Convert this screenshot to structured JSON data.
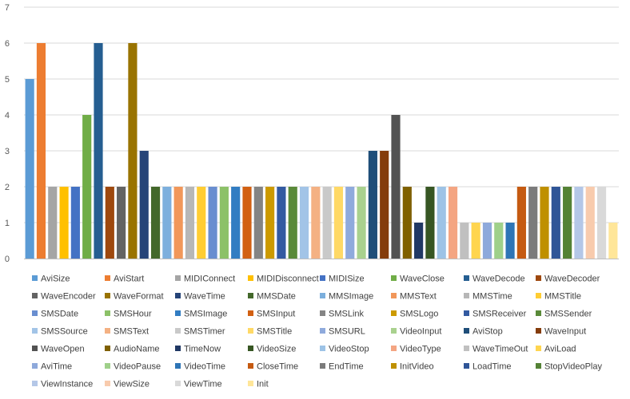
{
  "chart_data": {
    "type": "bar",
    "ylim": [
      0,
      7
    ],
    "yticks": [
      "0",
      "1",
      "2",
      "3",
      "4",
      "5",
      "6",
      "7"
    ],
    "grid": true,
    "legend_position": "bottom",
    "series": [
      {
        "name": "AviSize",
        "value": 5,
        "color": "#5B9BD5"
      },
      {
        "name": "AviStart",
        "value": 6,
        "color": "#ED7D31"
      },
      {
        "name": "MIDIConnect",
        "value": 2,
        "color": "#A5A5A5"
      },
      {
        "name": "MIDIDisconnect",
        "value": 2,
        "color": "#FFC000"
      },
      {
        "name": "MIDISize",
        "value": 2,
        "color": "#4472C4"
      },
      {
        "name": "WaveClose",
        "value": 4,
        "color": "#70AD47"
      },
      {
        "name": "WaveDecode",
        "value": 6,
        "color": "#255E91"
      },
      {
        "name": "WaveDecoder",
        "value": 2,
        "color": "#9E480E"
      },
      {
        "name": "WaveEncoder",
        "value": 2,
        "color": "#636363"
      },
      {
        "name": "WaveFormat",
        "value": 6,
        "color": "#997300"
      },
      {
        "name": "WaveTime",
        "value": 3,
        "color": "#264478"
      },
      {
        "name": "MMSDate",
        "value": 2,
        "color": "#43682B"
      },
      {
        "name": "MMSImage",
        "value": 2,
        "color": "#7CAFDD"
      },
      {
        "name": "MMSText",
        "value": 2,
        "color": "#F1975A"
      },
      {
        "name": "MMSTime",
        "value": 2,
        "color": "#B7B7B7"
      },
      {
        "name": "MMSTitle",
        "value": 2,
        "color": "#FFCD33"
      },
      {
        "name": "SMSDate",
        "value": 2,
        "color": "#698ED0"
      },
      {
        "name": "SMSHour",
        "value": 2,
        "color": "#8CC168"
      },
      {
        "name": "SMSImage",
        "value": 2,
        "color": "#327DC2"
      },
      {
        "name": "SMSInput",
        "value": 2,
        "color": "#D26012"
      },
      {
        "name": "SMSLink",
        "value": 2,
        "color": "#848484"
      },
      {
        "name": "SMSLogo",
        "value": 2,
        "color": "#CC9A00"
      },
      {
        "name": "SMSReceiver",
        "value": 2,
        "color": "#335AA1"
      },
      {
        "name": "SMSSender",
        "value": 2,
        "color": "#5A8A39"
      },
      {
        "name": "SMSSource",
        "value": 2,
        "color": "#A2C4E7"
      },
      {
        "name": "SMSText",
        "value": 2,
        "color": "#F4B183"
      },
      {
        "name": "SMSTimer",
        "value": 2,
        "color": "#C9C9C9"
      },
      {
        "name": "SMSTitle",
        "value": 2,
        "color": "#FFD966"
      },
      {
        "name": "SMSURL",
        "value": 2,
        "color": "#8FAADC"
      },
      {
        "name": "VideoInput",
        "value": 2,
        "color": "#A9D18E"
      },
      {
        "name": "AviStop",
        "value": 3,
        "color": "#1F4E79"
      },
      {
        "name": "WaveInput",
        "value": 3,
        "color": "#843C0C"
      },
      {
        "name": "WaveOpen",
        "value": 4,
        "color": "#525252"
      },
      {
        "name": "AudioName",
        "value": 2,
        "color": "#7F6000"
      },
      {
        "name": "TimeNow",
        "value": 1,
        "color": "#203864"
      },
      {
        "name": "VideoSize",
        "value": 2,
        "color": "#375623"
      },
      {
        "name": "VideoStop",
        "value": 2,
        "color": "#9DC3E6"
      },
      {
        "name": "VideoType",
        "value": 2,
        "color": "#F4A582"
      },
      {
        "name": "WaveTimeOut",
        "value": 1,
        "color": "#C0C0C0"
      },
      {
        "name": "AviLoad",
        "value": 1,
        "color": "#FFD54F"
      },
      {
        "name": "AviTime",
        "value": 1,
        "color": "#8EA9DB"
      },
      {
        "name": "VideoPause",
        "value": 1,
        "color": "#9FD08A"
      },
      {
        "name": "VideoTime",
        "value": 1,
        "color": "#2E75B6"
      },
      {
        "name": "CloseTime",
        "value": 2,
        "color": "#C55A11"
      },
      {
        "name": "EndTime",
        "value": 2,
        "color": "#7B7B7B"
      },
      {
        "name": "InitVideo",
        "value": 2,
        "color": "#BF9000"
      },
      {
        "name": "LoadTime",
        "value": 2,
        "color": "#2F5597"
      },
      {
        "name": "StopVideoPlay",
        "value": 2,
        "color": "#548235"
      },
      {
        "name": "ViewInstance",
        "value": 2,
        "color": "#B4C7E7"
      },
      {
        "name": "ViewSize",
        "value": 2,
        "color": "#F8CBAD"
      },
      {
        "name": "ViewTime",
        "value": 2,
        "color": "#D9D9D9"
      },
      {
        "name": "Init",
        "value": 1,
        "color": "#FFE699"
      }
    ]
  }
}
